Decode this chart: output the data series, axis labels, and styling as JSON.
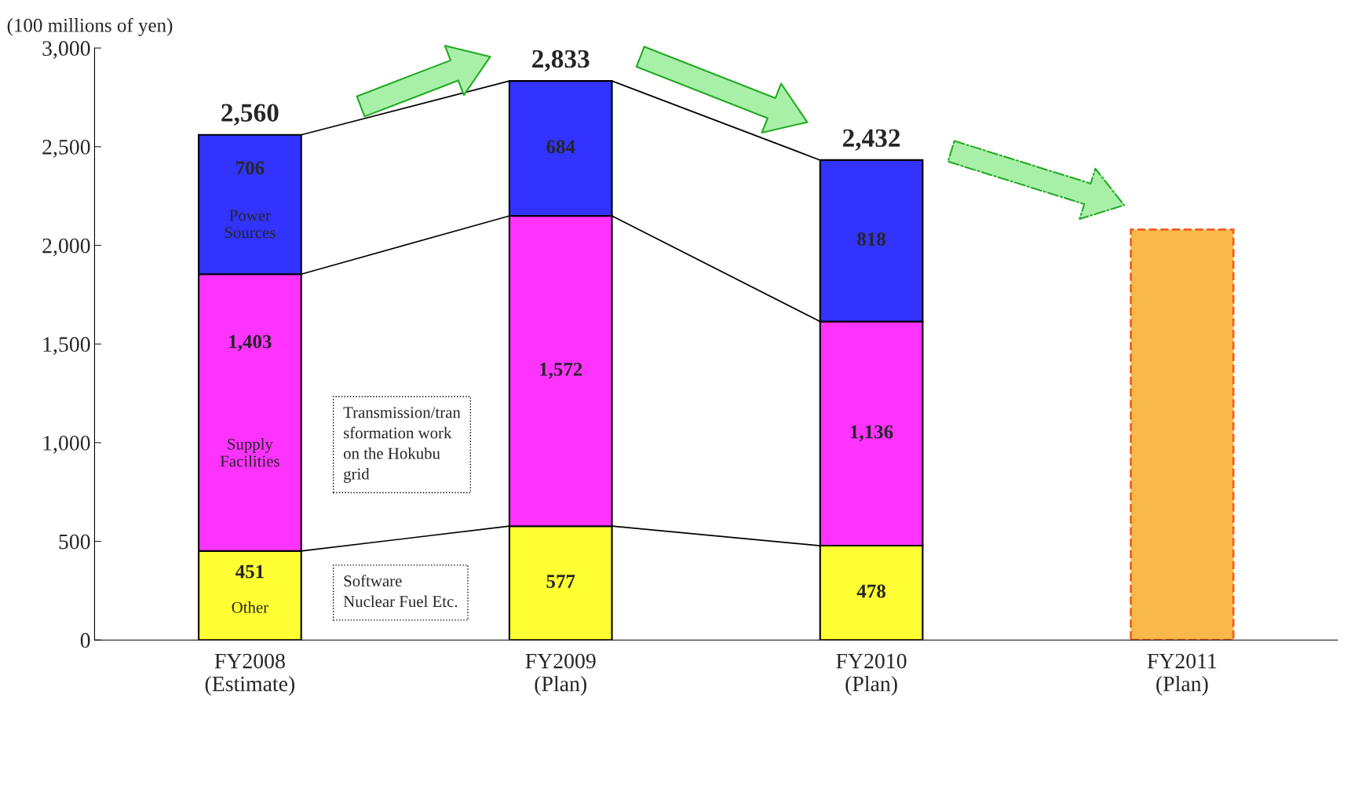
{
  "chart_data": {
    "type": "bar",
    "stacked": true,
    "ylabel": "(100 millions of yen)",
    "categories": [
      "FY2008\n(Estimate)",
      "FY2009\n(Plan)",
      "FY2010\n(Plan)",
      "FY2011\n(Plan)"
    ],
    "series": [
      {
        "name": "Other",
        "color": "#ffff33",
        "values": [
          451,
          577,
          478,
          null
        ],
        "value_labels": [
          "451",
          "577",
          "478",
          null
        ]
      },
      {
        "name": "Supply Facilities",
        "color": "#ff33ff",
        "values": [
          1403,
          1572,
          1136,
          null
        ],
        "value_labels": [
          "1,403",
          "1,572",
          "1,136",
          null
        ]
      },
      {
        "name": "Power Sources",
        "color": "#3333ff",
        "values": [
          706,
          684,
          818,
          null
        ],
        "value_labels": [
          "706",
          "684",
          "818",
          null
        ]
      },
      {
        "color": "#f8b84a",
        "line_style": "dashed",
        "values": [
          null,
          null,
          null,
          2080
        ]
      }
    ],
    "totals": [
      "2,560",
      "2,833",
      "2,432",
      null
    ],
    "ylim": [
      0,
      3000
    ],
    "yticks": [
      0,
      500,
      {
        "value": 1000,
        "label": "1,000"
      },
      {
        "value": 1500,
        "label": "1,500"
      },
      {
        "value": 2000,
        "label": "2,000"
      },
      {
        "value": 2500,
        "label": "2,500"
      },
      {
        "value": 3000,
        "label": "3,000"
      }
    ],
    "grid": false,
    "legend": false,
    "annotations": [
      "Transmission/tran\nsformation work\non the Hokubu\ngrid",
      "Software\nNuclear Fuel Etc."
    ]
  }
}
